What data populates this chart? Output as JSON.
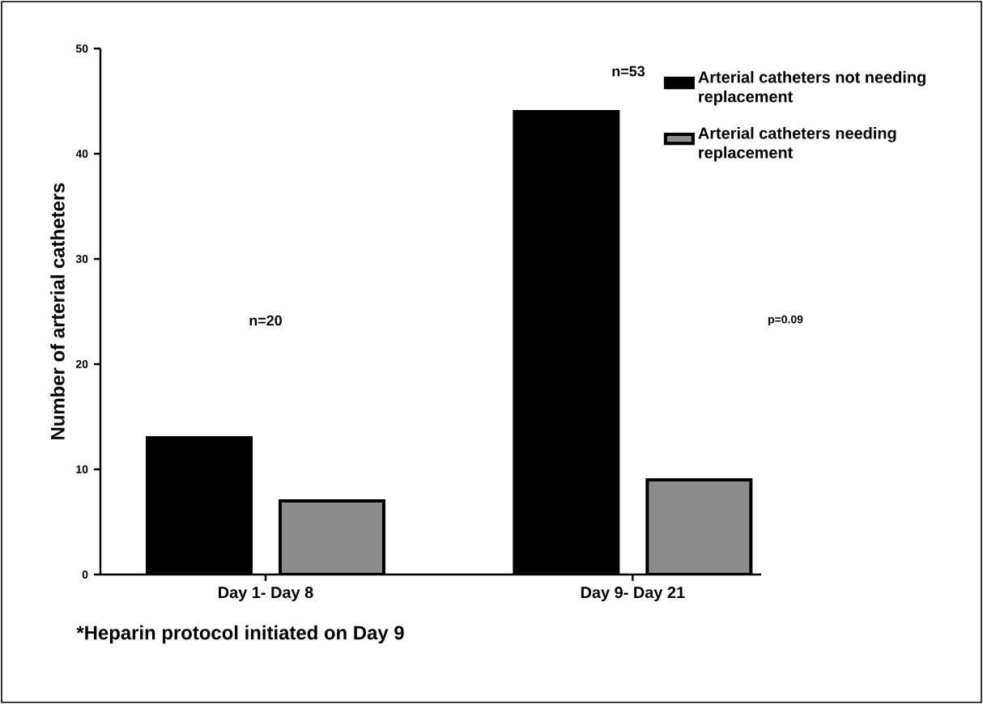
{
  "chart_data": {
    "type": "bar",
    "categories": [
      "Day 1- Day 8",
      "Day 9- Day 21"
    ],
    "ylabel": "Number of arterial catheters",
    "series": [
      {
        "name": "Arterial catheters not needing replacement",
        "color": "#000000",
        "values": [
          13,
          44
        ]
      },
      {
        "name": "Arterial catheters needing replacement",
        "color": "#8c8c8c",
        "values": [
          7,
          9
        ]
      }
    ],
    "ylim": [
      0,
      50
    ],
    "yticks": [
      0,
      10,
      20,
      30,
      40,
      50
    ],
    "legend": "right",
    "grid": false,
    "annotations": [
      "n=20",
      "n=53",
      "p=0.09",
      "*Heparin protocol initiated on Day 9"
    ]
  }
}
